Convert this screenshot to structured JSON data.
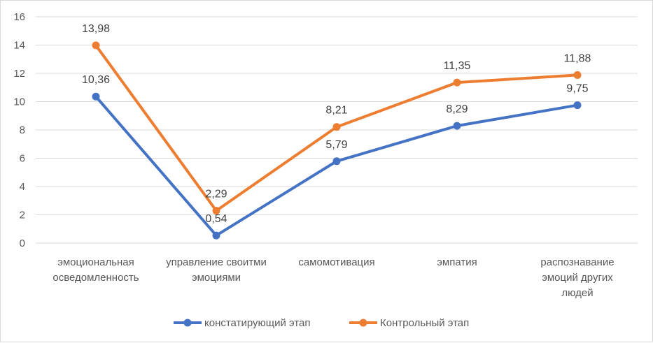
{
  "chart_data": {
    "type": "line",
    "title": "",
    "xlabel": "",
    "ylabel": "",
    "ylim": [
      0,
      16
    ],
    "yticks": [
      0,
      2,
      4,
      6,
      8,
      10,
      12,
      14,
      16
    ],
    "grid": true,
    "legend_position": "bottom",
    "categories": [
      [
        "эмоциональная",
        "осведомленность"
      ],
      [
        "управление своитми",
        "эмоциями"
      ],
      [
        "самомотивация"
      ],
      [
        "эмпатия"
      ],
      [
        "распознавание",
        "эмоций других",
        "людей"
      ]
    ],
    "series": [
      {
        "name": "констатирующий этап",
        "color": "#4472c4",
        "values": [
          10.36,
          0.54,
          5.79,
          8.29,
          9.75
        ],
        "labels": [
          "10,36",
          "0,54",
          "5,79",
          "8,29",
          "9,75"
        ]
      },
      {
        "name": "Контрольный этап",
        "color": "#ed7d31",
        "values": [
          13.98,
          2.29,
          8.21,
          11.35,
          11.88
        ],
        "labels": [
          "13,98",
          "2,29",
          "8,21",
          "11,35",
          "11,88"
        ]
      }
    ]
  }
}
